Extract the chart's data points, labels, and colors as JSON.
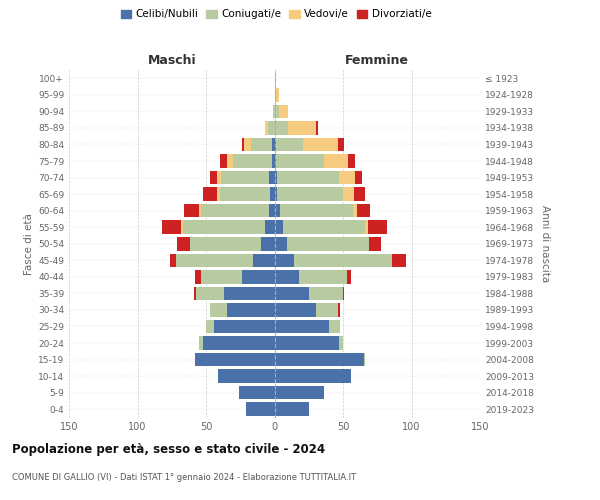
{
  "age_groups": [
    "0-4",
    "5-9",
    "10-14",
    "15-19",
    "20-24",
    "25-29",
    "30-34",
    "35-39",
    "40-44",
    "45-49",
    "50-54",
    "55-59",
    "60-64",
    "65-69",
    "70-74",
    "75-79",
    "80-84",
    "85-89",
    "90-94",
    "95-99",
    "100+"
  ],
  "birth_years": [
    "2019-2023",
    "2014-2018",
    "2009-2013",
    "2004-2008",
    "1999-2003",
    "1994-1998",
    "1989-1993",
    "1984-1988",
    "1979-1983",
    "1974-1978",
    "1969-1973",
    "1964-1968",
    "1959-1963",
    "1954-1958",
    "1949-1953",
    "1944-1948",
    "1939-1943",
    "1934-1938",
    "1929-1933",
    "1924-1928",
    "≤ 1923"
  ],
  "colors": {
    "celibi": "#4a72a8",
    "coniugati": "#b8cba0",
    "vedovi": "#f5cc7f",
    "divorziati": "#cc2222"
  },
  "males": {
    "celibi": [
      21,
      26,
      41,
      58,
      52,
      44,
      35,
      37,
      24,
      16,
      10,
      7,
      4,
      3,
      4,
      2,
      2,
      0,
      0,
      0,
      0
    ],
    "coniugati": [
      0,
      0,
      0,
      0,
      3,
      6,
      12,
      20,
      30,
      56,
      52,
      60,
      50,
      37,
      35,
      28,
      15,
      5,
      1,
      0,
      0
    ],
    "vedovi": [
      0,
      0,
      0,
      0,
      0,
      0,
      0,
      0,
      0,
      0,
      0,
      1,
      1,
      2,
      3,
      5,
      5,
      2,
      0,
      0,
      0
    ],
    "divorziati": [
      0,
      0,
      0,
      0,
      0,
      0,
      0,
      2,
      4,
      4,
      9,
      14,
      11,
      10,
      5,
      5,
      2,
      0,
      0,
      0,
      0
    ]
  },
  "females": {
    "celibi": [
      25,
      36,
      56,
      65,
      47,
      40,
      30,
      25,
      18,
      14,
      9,
      6,
      4,
      2,
      2,
      1,
      1,
      0,
      0,
      0,
      0
    ],
    "coniugati": [
      0,
      0,
      0,
      1,
      3,
      8,
      16,
      25,
      35,
      72,
      60,
      60,
      53,
      48,
      45,
      35,
      20,
      10,
      3,
      1,
      0
    ],
    "vedovi": [
      0,
      0,
      0,
      0,
      0,
      0,
      0,
      0,
      0,
      0,
      0,
      2,
      3,
      8,
      12,
      18,
      25,
      20,
      7,
      2,
      1
    ],
    "divorziati": [
      0,
      0,
      0,
      0,
      0,
      0,
      2,
      1,
      3,
      10,
      9,
      14,
      10,
      8,
      5,
      5,
      5,
      2,
      0,
      0,
      0
    ]
  },
  "title": "Popolazione per età, sesso e stato civile - 2024",
  "subtitle": "COMUNE DI GALLIO (VI) - Dati ISTAT 1° gennaio 2024 - Elaborazione TUTTITALIA.IT",
  "ylabel_left": "Fasce di età",
  "ylabel_right": "Anni di nascita",
  "xlabel_left": "Maschi",
  "xlabel_right": "Femmine",
  "xlim": 150,
  "bg_color": "#ffffff",
  "grid_color": "#cccccc",
  "legend_labels": [
    "Celibi/Nubili",
    "Coniugati/e",
    "Vedovi/e",
    "Divorziati/e"
  ]
}
